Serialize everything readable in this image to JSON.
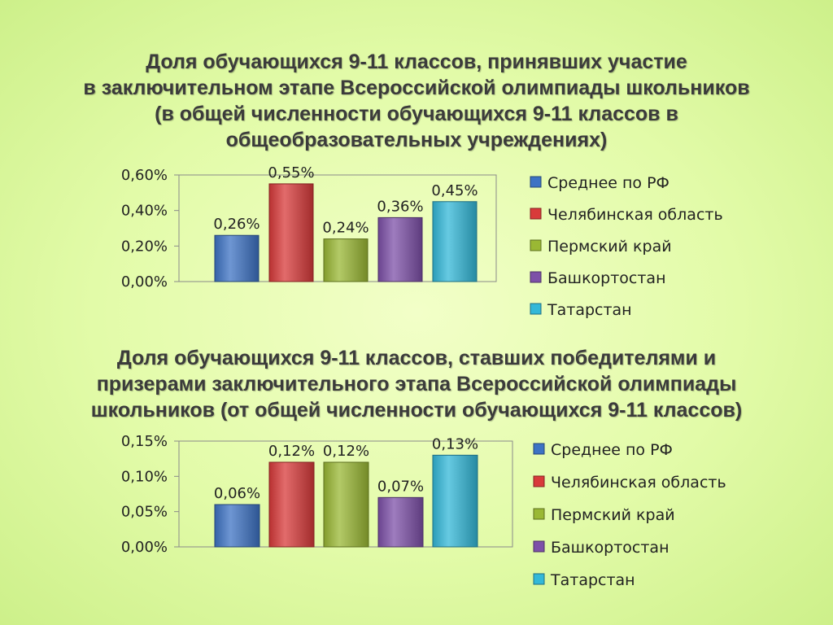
{
  "charts": [
    {
      "title_lines": [
        "Доля обучающихся 9-11 классов, принявших участие",
        "в заключительном этапе Всероссийской олимпиады школьников",
        "(в общей численности обучающихся 9-11 классов в",
        "общеобразовательных учреждениях)"
      ]
    },
    {
      "title_lines": [
        "Доля обучающихся 9-11 классов, ставших победителями и",
        "призерами заключительного этапа Всероссийской олимпиады",
        "школьников (от общей численности обучающихся 9-11 классов)"
      ]
    }
  ],
  "chart_data": [
    {
      "type": "bar",
      "categories": [
        "Среднее по РФ",
        "Челябинская область",
        "Пермский край",
        "Башкортостан",
        "Татарстан"
      ],
      "values": [
        0.26,
        0.55,
        0.24,
        0.36,
        0.45
      ],
      "value_labels": [
        "0,26%",
        "0,55%",
        "0,24%",
        "0,36%",
        "0,45%"
      ],
      "unit": "%",
      "ylim": [
        0,
        0.6
      ],
      "yticks": [
        0,
        0.2,
        0.4,
        0.6
      ],
      "ytick_labels": [
        "0,00%",
        "0,20%",
        "0,40%",
        "0,60%"
      ],
      "colors": [
        "#3d73c4",
        "#d83a3a",
        "#9ab834",
        "#7d50a8",
        "#33b8d8"
      ],
      "legend_position": "right",
      "grid": false
    },
    {
      "type": "bar",
      "categories": [
        "Среднее по РФ",
        "Челябинская область",
        "Пермский край",
        "Башкортостан",
        "Татарстан"
      ],
      "values": [
        0.06,
        0.12,
        0.12,
        0.07,
        0.13
      ],
      "value_labels": [
        "0,06%",
        "0,12%",
        "0,12%",
        "0,07%",
        "0,13%"
      ],
      "unit": "%",
      "ylim": [
        0,
        0.15
      ],
      "yticks": [
        0,
        0.05,
        0.1,
        0.15
      ],
      "ytick_labels": [
        "0,00%",
        "0,05%",
        "0,10%",
        "0,15%"
      ],
      "colors": [
        "#3d73c4",
        "#d83a3a",
        "#9ab834",
        "#7d50a8",
        "#33b8d8"
      ],
      "legend_position": "right",
      "grid": false
    }
  ]
}
